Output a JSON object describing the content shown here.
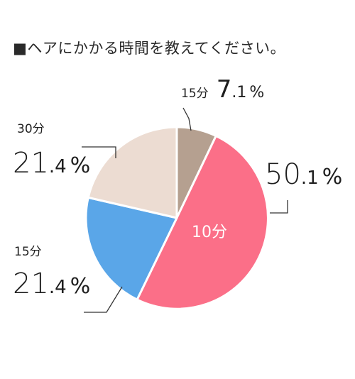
{
  "chart_data": {
    "type": "pie",
    "title": "■ヘアにかかる時間を教えてください。",
    "slices": [
      {
        "category": "15分",
        "label_int": "7",
        "label_dec": ".1",
        "unit": "%",
        "value": 7.1,
        "color": "#b5a090"
      },
      {
        "category": "10分",
        "label_int": "50",
        "label_dec": ".1",
        "unit": "%",
        "value": 50.1,
        "color": "#fb6f88"
      },
      {
        "category": "15分",
        "label_int": "21",
        "label_dec": ".4",
        "unit": "%",
        "value": 21.4,
        "color": "#5aa6e8"
      },
      {
        "category": "30分",
        "label_int": "21",
        "label_dec": ".4",
        "unit": "%",
        "value": 21.4,
        "color": "#ecdcd2"
      }
    ]
  }
}
